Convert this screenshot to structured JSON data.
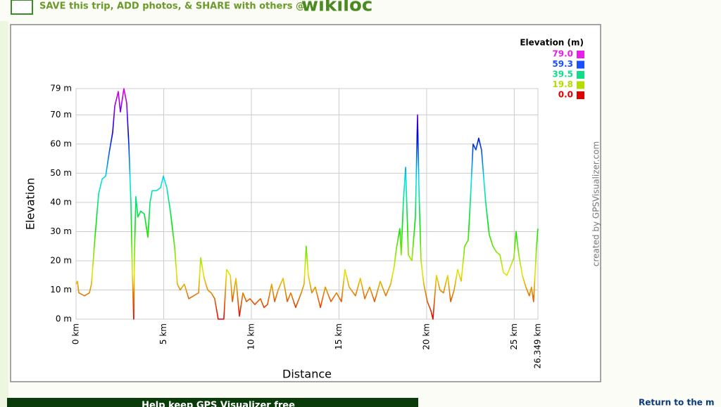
{
  "banner": {
    "text": "SAVE this trip, ADD photos, & SHARE with others @",
    "logo": "wikiloc"
  },
  "chart_data": {
    "type": "line",
    "x_label": "Distance",
    "y_label": "Elevation",
    "credit": "created by GPSVisualizer.com",
    "legend": {
      "title": "Elevation (m)",
      "entries": [
        {
          "label": "79.0",
          "value": 79,
          "color": "#e81ee8"
        },
        {
          "label": "59.3",
          "value": 59.3,
          "color": "#1a4fff"
        },
        {
          "label": "39.5",
          "value": 39.5,
          "color": "#10dd88"
        },
        {
          "label": "19.8",
          "value": 19.8,
          "color": "#b4dc00"
        },
        {
          "label": "0.0",
          "value": 0,
          "color": "#e00000"
        }
      ]
    },
    "x": [
      0,
      0.08,
      0.16,
      0.48,
      0.76,
      0.88,
      1.08,
      1.29,
      1.49,
      1.69,
      1.89,
      2.09,
      2.21,
      2.41,
      2.53,
      2.73,
      2.89,
      3.01,
      3.13,
      3.21,
      3.29,
      3.33,
      3.41,
      3.53,
      3.69,
      3.9,
      4.1,
      4.22,
      4.34,
      4.58,
      4.82,
      4.98,
      5.18,
      5.38,
      5.62,
      5.78,
      5.94,
      6.18,
      6.43,
      6.71,
      6.99,
      7.11,
      7.31,
      7.51,
      7.71,
      7.91,
      8.11,
      8.43,
      8.59,
      8.8,
      8.92,
      9.12,
      9.32,
      9.52,
      9.72,
      9.92,
      10.2,
      10.52,
      10.72,
      10.92,
      11.16,
      11.33,
      11.53,
      11.81,
      12.05,
      12.25,
      12.53,
      12.85,
      13.01,
      13.13,
      13.25,
      13.45,
      13.65,
      13.94,
      14.22,
      14.54,
      14.86,
      15.14,
      15.34,
      15.58,
      15.94,
      16.22,
      16.47,
      16.75,
      17.03,
      17.35,
      17.67,
      17.95,
      18.15,
      18.27,
      18.47,
      18.55,
      18.67,
      18.8,
      18.96,
      19.16,
      19.36,
      19.48,
      19.56,
      19.68,
      19.84,
      20.04,
      20.24,
      20.36,
      20.56,
      20.76,
      20.96,
      21.2,
      21.37,
      21.57,
      21.77,
      21.97,
      22.17,
      22.37,
      22.49,
      22.65,
      22.81,
      22.97,
      23.13,
      23.37,
      23.57,
      23.78,
      23.98,
      24.18,
      24.38,
      24.58,
      24.78,
      24.98,
      25.1,
      25.26,
      25.46,
      25.66,
      25.86,
      25.98,
      26.1,
      26.27,
      26.349
    ],
    "series": [
      {
        "name": "Elevation",
        "values": [
          12,
          13,
          9,
          8,
          9,
          12,
          28,
          43,
          48,
          49,
          57,
          64,
          73,
          78,
          71,
          79,
          74,
          60,
          40,
          16,
          0,
          21,
          42,
          35,
          37,
          36,
          28,
          40,
          44,
          44,
          45,
          49,
          45,
          37,
          25,
          12,
          10,
          12,
          7,
          8,
          9,
          21,
          14,
          10,
          9,
          7,
          0,
          0,
          17,
          15,
          6,
          14,
          1,
          9,
          6,
          7,
          5,
          7,
          4,
          5,
          12,
          6,
          10,
          14,
          6,
          9,
          4,
          9,
          12,
          25,
          15,
          9,
          11,
          4,
          11,
          6,
          9,
          6,
          17,
          11,
          8,
          14,
          7,
          11,
          6,
          13,
          8,
          12,
          18,
          24,
          31,
          22,
          40,
          52,
          22,
          20,
          35,
          70,
          45,
          20,
          12,
          6,
          3,
          0,
          15,
          10,
          9,
          15,
          6,
          10,
          17,
          13,
          25,
          27,
          40,
          60,
          58,
          62,
          58,
          40,
          29,
          25,
          23,
          22,
          16,
          15,
          18,
          21,
          30,
          22,
          15,
          11,
          8,
          11,
          6,
          25,
          31
        ]
      }
    ],
    "xlim": [
      0,
      26.349
    ],
    "ylim": [
      0,
      79
    ],
    "xticks": [
      {
        "value": 0,
        "label": "0 km"
      },
      {
        "value": 5,
        "label": "5 km"
      },
      {
        "value": 10,
        "label": "10 km"
      },
      {
        "value": 15,
        "label": "15 km"
      },
      {
        "value": 20,
        "label": "20 km"
      },
      {
        "value": 25,
        "label": "25 km"
      },
      {
        "value": 26.349,
        "label": "26.349 km"
      }
    ],
    "yticks": [
      {
        "value": 0,
        "label": "0 m"
      },
      {
        "value": 10,
        "label": "10 m"
      },
      {
        "value": 20,
        "label": "20 m"
      },
      {
        "value": 30,
        "label": "30 m"
      },
      {
        "value": 40,
        "label": "40 m"
      },
      {
        "value": 50,
        "label": "50 m"
      },
      {
        "value": 60,
        "label": "60 m"
      },
      {
        "value": 70,
        "label": "70 m"
      },
      {
        "value": 79,
        "label": "79 m"
      }
    ],
    "grid": true
  },
  "footer": {
    "donate": "Help keep GPS Visualizer free",
    "return_link": "Return to the m"
  }
}
